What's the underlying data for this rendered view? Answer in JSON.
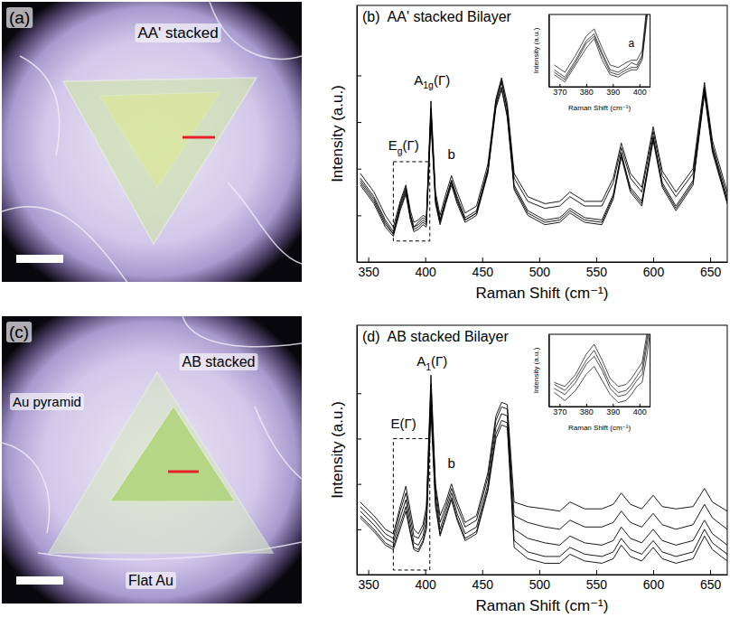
{
  "chart_data": [
    {
      "type": "line",
      "panel": "(b)",
      "title": "AA' stacked Bilayer",
      "x_label": "Raman Shift (cm⁻¹)",
      "y_label": "Intensity (a.u.)",
      "color": "#000000",
      "tick_labels": "x",
      "xlim": [
        340,
        665
      ],
      "xticks": [
        350,
        400,
        450,
        500,
        550,
        600,
        650
      ],
      "ylim": [
        0,
        11
      ],
      "yticks": [
        2,
        4,
        6,
        8
      ],
      "x": [
        343,
        355,
        365,
        372,
        378,
        383,
        387,
        390,
        394,
        398,
        401,
        405,
        409,
        413,
        418,
        423,
        428,
        435,
        445,
        455,
        462,
        467,
        472,
        478,
        490,
        505,
        518,
        527,
        540,
        555,
        565,
        572,
        580,
        590,
        600,
        608,
        620,
        635,
        645,
        652,
        665
      ],
      "series": [
        {
          "values": [
            3.8,
            3.0,
            2.0,
            1.5,
            2.6,
            3.3,
            2.2,
            1.7,
            1.8,
            2.0,
            1.9,
            6.9,
            3.0,
            2.0,
            2.9,
            3.7,
            3.0,
            2.1,
            2.4,
            4.2,
            7.0,
            7.9,
            6.8,
            3.8,
            2.8,
            2.5,
            2.6,
            3.0,
            2.6,
            2.6,
            3.6,
            5.1,
            3.8,
            3.2,
            5.8,
            3.9,
            3.0,
            4.0,
            7.7,
            5.2,
            3.0
          ]
        },
        {
          "values": [
            3.6,
            2.8,
            1.8,
            1.3,
            2.4,
            3.1,
            2.0,
            1.5,
            1.6,
            1.8,
            1.7,
            6.5,
            2.8,
            1.8,
            2.7,
            3.5,
            2.8,
            1.9,
            2.2,
            4.0,
            6.8,
            7.7,
            6.6,
            3.6,
            2.6,
            2.3,
            2.4,
            2.8,
            2.4,
            2.4,
            3.4,
            4.9,
            3.6,
            3.0,
            5.6,
            3.7,
            2.8,
            3.8,
            7.5,
            5.0,
            2.8
          ]
        },
        {
          "values": [
            3.4,
            2.6,
            1.6,
            1.2,
            2.3,
            3.0,
            1.9,
            1.4,
            1.5,
            1.7,
            1.6,
            6.2,
            2.6,
            1.7,
            2.6,
            3.4,
            2.6,
            1.8,
            2.1,
            3.9,
            6.7,
            7.5,
            6.3,
            3.3,
            2.2,
            1.8,
            1.9,
            2.3,
            1.9,
            1.8,
            2.9,
            4.6,
            3.2,
            2.6,
            5.3,
            3.4,
            2.4,
            3.5,
            7.3,
            4.8,
            2.6
          ]
        },
        {
          "values": [
            3.3,
            2.5,
            1.5,
            1.1,
            2.2,
            2.9,
            1.8,
            1.3,
            1.4,
            1.6,
            1.5,
            6.0,
            2.5,
            1.6,
            2.5,
            3.3,
            2.5,
            1.7,
            2.0,
            3.8,
            6.6,
            7.4,
            6.2,
            3.1,
            2.0,
            1.6,
            1.7,
            2.1,
            1.7,
            1.6,
            2.7,
            4.5,
            3.0,
            2.4,
            5.2,
            3.2,
            2.2,
            3.3,
            7.2,
            4.7,
            2.5
          ]
        },
        {
          "values": [
            3.5,
            2.7,
            1.7,
            1.2,
            2.5,
            3.2,
            2.0,
            1.5,
            1.7,
            1.9,
            1.8,
            6.6,
            2.7,
            1.8,
            2.6,
            3.5,
            2.7,
            1.8,
            2.1,
            3.9,
            6.9,
            7.8,
            6.5,
            3.2,
            2.1,
            1.7,
            1.8,
            2.2,
            1.8,
            1.7,
            2.8,
            4.7,
            3.1,
            2.5,
            5.4,
            3.3,
            2.3,
            3.4,
            7.4,
            4.9,
            2.6
          ]
        }
      ],
      "annotations": [
        {
          "text": "E",
          "sub": "g",
          "after": "(Γ)",
          "x": 381,
          "y": 4.8
        },
        {
          "text": "A",
          "sub": "1g",
          "after": "(Γ)",
          "x": 406,
          "y": 7.6
        },
        {
          "text": "b",
          "x": 423,
          "y": 4.4
        }
      ],
      "inset_region": {
        "x": [
          372,
          404
        ],
        "y": [
          0.9,
          4.3
        ]
      },
      "inset": {
        "type": "line",
        "x_label": "Raman Shift (cm⁻¹)",
        "y_label": "Intensity (a.u.)",
        "color": "#000000",
        "tick_labels": "x",
        "xlim": [
          366,
          404
        ],
        "xticks": [
          370,
          380,
          390,
          400
        ],
        "ylim": [
          0.9,
          3.9
        ],
        "x": [
          368,
          372,
          376,
          380,
          383,
          386,
          389,
          392,
          395,
          397,
          399,
          401,
          403,
          404
        ],
        "series": [
          {
            "values": [
              1.8,
              1.5,
              2.2,
              3.0,
              3.3,
              2.5,
              1.8,
              1.7,
              1.9,
              2.0,
              2.0,
              2.4,
              4.5,
              5.5
            ]
          },
          {
            "values": [
              1.5,
              1.2,
              1.9,
              2.7,
              3.0,
              2.2,
              1.5,
              1.4,
              1.6,
              1.7,
              1.7,
              2.1,
              4.1,
              5.1
            ]
          },
          {
            "values": [
              1.4,
              1.1,
              1.8,
              2.5,
              2.9,
              2.0,
              1.4,
              1.3,
              1.5,
              1.6,
              1.6,
              2.0,
              3.9,
              4.9
            ]
          },
          {
            "values": [
              1.6,
              1.3,
              2.0,
              2.8,
              3.1,
              2.3,
              1.6,
              1.5,
              1.7,
              1.9,
              1.8,
              2.2,
              4.3,
              5.3
            ]
          }
        ],
        "annotations": [
          {
            "text": "a",
            "x": 397,
            "y": 2.55
          }
        ]
      }
    },
    {
      "type": "line",
      "panel": "(d)",
      "title": "AB stacked Bilayer",
      "x_label": "Raman Shift (cm⁻¹)",
      "y_label": "Intensity (a.u.)",
      "color": "#000000",
      "tick_labels": "x",
      "xlim": [
        340,
        665
      ],
      "xticks": [
        350,
        400,
        450,
        500,
        550,
        600,
        650
      ],
      "ylim": [
        0,
        11
      ],
      "yticks": [
        2,
        4,
        6,
        8
      ],
      "x": [
        343,
        355,
        365,
        372,
        378,
        383,
        387,
        390,
        394,
        398,
        401,
        405,
        409,
        413,
        418,
        423,
        428,
        435,
        445,
        455,
        462,
        467,
        472,
        478,
        490,
        505,
        518,
        527,
        540,
        555,
        565,
        572,
        580,
        590,
        600,
        608,
        620,
        635,
        645,
        652,
        665
      ],
      "series": [
        {
          "values": [
            3.2,
            2.6,
            2.0,
            1.8,
            3.0,
            3.9,
            2.8,
            2.0,
            1.8,
            2.2,
            3.0,
            8.8,
            4.0,
            2.6,
            3.2,
            4.0,
            3.2,
            2.3,
            2.6,
            4.5,
            7.0,
            7.6,
            7.5,
            3.2,
            3.0,
            2.9,
            2.8,
            3.2,
            2.9,
            2.9,
            3.1,
            3.6,
            3.1,
            2.9,
            3.5,
            3.0,
            2.9,
            3.0,
            3.8,
            3.2,
            2.8
          ]
        },
        {
          "values": [
            3.0,
            2.4,
            1.8,
            1.6,
            2.8,
            3.6,
            2.5,
            1.7,
            1.6,
            2.0,
            2.7,
            8.4,
            3.8,
            2.3,
            3.0,
            3.8,
            3.0,
            2.1,
            2.4,
            4.3,
            6.8,
            7.4,
            7.3,
            2.6,
            2.3,
            2.1,
            2.0,
            2.4,
            2.1,
            2.1,
            2.3,
            2.8,
            2.3,
            2.1,
            2.7,
            2.2,
            2.0,
            2.2,
            3.1,
            2.5,
            2.0
          ]
        },
        {
          "values": [
            2.8,
            2.2,
            1.6,
            1.4,
            2.5,
            3.3,
            2.2,
            1.4,
            1.3,
            1.7,
            2.4,
            8.0,
            3.5,
            2.0,
            2.8,
            3.6,
            2.7,
            1.8,
            2.1,
            4.0,
            6.5,
            7.1,
            7.0,
            2.0,
            1.6,
            1.4,
            1.3,
            1.7,
            1.4,
            1.3,
            1.5,
            2.1,
            1.6,
            1.4,
            2.0,
            1.5,
            1.3,
            1.5,
            2.4,
            1.8,
            1.3
          ]
        },
        {
          "values": [
            2.6,
            2.0,
            1.4,
            1.2,
            2.2,
            3.0,
            1.9,
            1.2,
            1.1,
            1.5,
            2.1,
            7.5,
            3.2,
            1.8,
            2.6,
            3.4,
            2.5,
            1.6,
            1.9,
            3.8,
            6.2,
            6.8,
            6.7,
            1.5,
            1.0,
            0.8,
            0.8,
            1.2,
            0.9,
            0.8,
            1.0,
            1.6,
            1.1,
            0.9,
            1.5,
            1.0,
            0.8,
            1.0,
            2.0,
            1.4,
            0.9
          ]
        },
        {
          "values": [
            2.5,
            1.9,
            1.3,
            1.1,
            2.0,
            2.8,
            1.8,
            1.1,
            1.0,
            1.4,
            2.0,
            7.2,
            3.0,
            1.7,
            2.5,
            3.3,
            2.4,
            1.5,
            1.8,
            3.7,
            6.0,
            6.6,
            6.5,
            1.2,
            0.7,
            0.5,
            0.5,
            0.9,
            0.6,
            0.5,
            0.7,
            1.3,
            0.8,
            0.6,
            1.2,
            0.7,
            0.5,
            0.7,
            1.7,
            1.1,
            0.6
          ]
        }
      ],
      "annotations": [
        {
          "text": "E",
          "after": "(Γ)",
          "x": 381,
          "y": 6.45
        },
        {
          "text": "A",
          "sub": "1",
          "after": "(Γ)",
          "x": 406,
          "y": 9.2
        },
        {
          "text": "b",
          "x": 423,
          "y": 4.7
        }
      ],
      "inset_region": {
        "x": [
          372,
          404
        ],
        "y": [
          0.2,
          6.0
        ]
      },
      "inset": {
        "type": "line",
        "x_label": "Raman Shift (cm⁻¹)",
        "y_label": "Intensity (a.u.)",
        "color": "#000000",
        "tick_labels": "x",
        "xlim": [
          366,
          404
        ],
        "xticks": [
          370,
          380,
          390,
          400
        ],
        "ylim": [
          0.8,
          4.4
        ],
        "x": [
          368,
          372,
          376,
          380,
          383,
          386,
          389,
          392,
          395,
          397,
          399,
          401,
          403,
          404
        ],
        "series": [
          {
            "values": [
              2.0,
              1.8,
              2.4,
              3.4,
              3.9,
              3.1,
              2.2,
              1.8,
              1.9,
              2.2,
              2.6,
              3.0,
              4.6,
              5.6
            ]
          },
          {
            "values": [
              1.9,
              1.6,
              2.2,
              3.1,
              3.6,
              2.8,
              1.9,
              1.5,
              1.6,
              1.9,
              2.3,
              2.7,
              4.3,
              5.3
            ]
          },
          {
            "values": [
              1.7,
              1.4,
              2.0,
              2.9,
              3.3,
              2.6,
              1.7,
              1.3,
              1.4,
              1.7,
              2.1,
              2.4,
              4.0,
              5.0
            ]
          },
          {
            "values": [
              1.5,
              1.1,
              1.6,
              2.4,
              2.8,
              2.1,
              1.4,
              1.0,
              1.1,
              1.4,
              1.8,
              2.0,
              3.5,
              4.5
            ]
          }
        ]
      }
    }
  ],
  "micrographs": [
    {
      "letter": "(a)",
      "labels": [
        "AA' stacked"
      ]
    },
    {
      "letter": "(c)",
      "labels": [
        "Au pyramid",
        "AB stacked",
        "Flat Au"
      ]
    }
  ]
}
